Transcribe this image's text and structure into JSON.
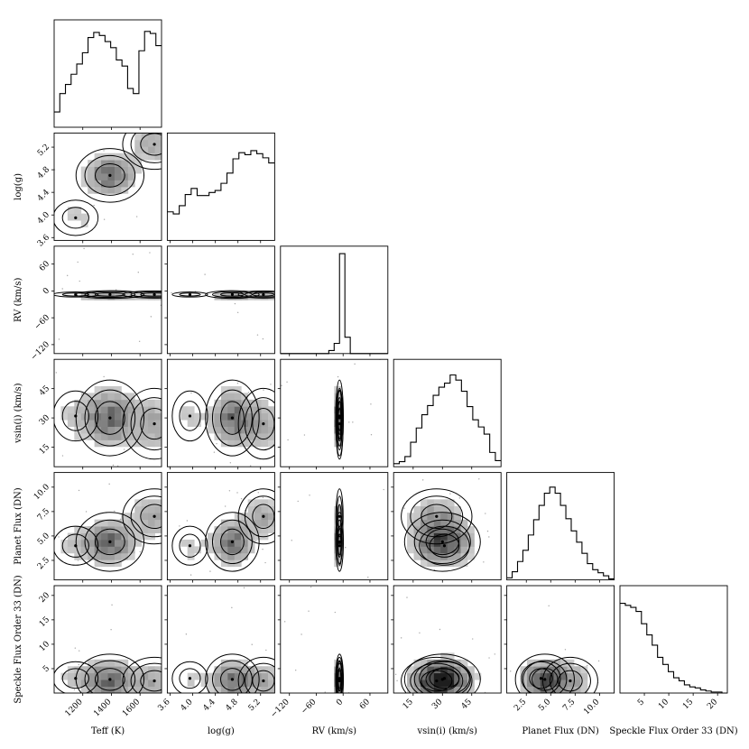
{
  "chart_data": {
    "type": "corner",
    "parameters": [
      {
        "key": "teff",
        "label": "Teff (K)",
        "range": [
          1000,
          1750
        ],
        "ticks": [
          1200,
          1400,
          1600
        ],
        "tick_labels": [
          "1200",
          "1400",
          "1600"
        ]
      },
      {
        "key": "logg",
        "label": "log(g)",
        "range": [
          3.55,
          5.45
        ],
        "ticks": [
          3.6,
          4.0,
          4.4,
          4.8,
          5.2
        ],
        "tick_labels": [
          "3.6",
          "4.0",
          "4.4",
          "4.8",
          "5.2"
        ]
      },
      {
        "key": "rv",
        "label": "RV (km/s)",
        "range": [
          -140,
          100
        ],
        "ticks": [
          -120,
          -60,
          0,
          60
        ],
        "tick_labels": [
          "−120",
          "−60",
          "0",
          "60"
        ]
      },
      {
        "key": "vsini",
        "label": "vsin(i) (km/s)",
        "range": [
          5,
          60
        ],
        "ticks": [
          15,
          30,
          45
        ],
        "tick_labels": [
          "15",
          "30",
          "45"
        ]
      },
      {
        "key": "pflux",
        "label": "Planet Flux (DN)",
        "range": [
          0.5,
          11.5
        ],
        "ticks": [
          2.5,
          5.0,
          7.5,
          10.0
        ],
        "tick_labels": [
          "2.5",
          "5.0",
          "7.5",
          "10.0"
        ]
      },
      {
        "key": "sflux",
        "label": "Speckle Flux Order 33 (DN)",
        "range": [
          0,
          22
        ],
        "ticks": [
          5,
          10,
          15,
          20
        ],
        "tick_labels": [
          "5",
          "10",
          "15",
          "20"
        ]
      }
    ],
    "histograms": [
      [
        0.15,
        0.33,
        0.42,
        0.52,
        0.62,
        0.73,
        0.88,
        0.93,
        0.9,
        0.84,
        0.78,
        0.66,
        0.6,
        0.38,
        0.33,
        0.75,
        0.94,
        0.92,
        0.8
      ],
      [
        0.28,
        0.26,
        0.34,
        0.45,
        0.51,
        0.44,
        0.44,
        0.47,
        0.49,
        0.56,
        0.66,
        0.8,
        0.86,
        0.84,
        0.88,
        0.85,
        0.81,
        0.76
      ],
      [
        0,
        0,
        0,
        0,
        0,
        0,
        0,
        0,
        0,
        0.03,
        0.1,
        0.98,
        0.16,
        0,
        0,
        0,
        0,
        0,
        0,
        0
      ],
      [
        0.03,
        0.05,
        0.1,
        0.24,
        0.38,
        0.51,
        0.6,
        0.7,
        0.78,
        0.82,
        0.9,
        0.85,
        0.74,
        0.59,
        0.46,
        0.39,
        0.32,
        0.14,
        0.06
      ],
      [
        0.02,
        0.08,
        0.18,
        0.29,
        0.44,
        0.59,
        0.73,
        0.85,
        0.91,
        0.85,
        0.73,
        0.6,
        0.48,
        0.37,
        0.26,
        0.16,
        0.1,
        0.07,
        0.04,
        0.01
      ],
      [
        0.88,
        0.86,
        0.84,
        0.8,
        0.68,
        0.57,
        0.47,
        0.35,
        0.28,
        0.21,
        0.15,
        0.12,
        0.08,
        0.06,
        0.05,
        0.03,
        0.02,
        0.01,
        0.01,
        0
      ]
    ],
    "modes": [
      {
        "teff": 1390,
        "logg": 4.7,
        "rv": -8,
        "vsini": 30,
        "pflux": 4.4,
        "sflux": 2.8,
        "w": 0.55
      },
      {
        "teff": 1700,
        "logg": 5.25,
        "rv": -8,
        "vsini": 27,
        "pflux": 7.0,
        "sflux": 2.5,
        "w": 0.3
      },
      {
        "teff": 1150,
        "logg": 3.95,
        "rv": -8,
        "vsini": 31,
        "pflux": 4.0,
        "sflux": 3.0,
        "w": 0.15
      }
    ],
    "mode_widths": {
      "teff": 110,
      "logg": 0.22,
      "rv": 4,
      "vsini": 9,
      "pflux": 1.4,
      "sflux": 2.4
    },
    "grid": false,
    "legend": "none"
  }
}
